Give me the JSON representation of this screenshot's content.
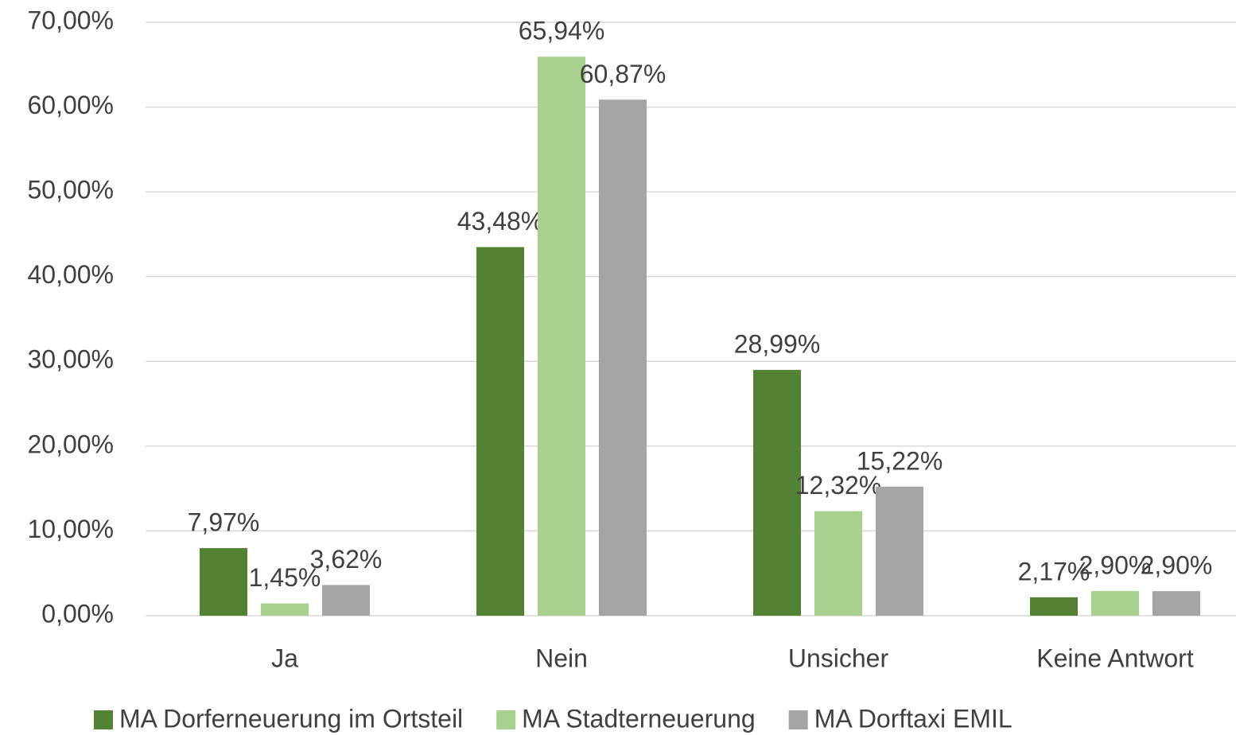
{
  "chart_data": {
    "type": "bar",
    "categories": [
      "Ja",
      "Nein",
      "Unsicher",
      "Keine Antwort"
    ],
    "series": [
      {
        "name": "MA Dorferneuerung im Ortsteil",
        "color": "#548235",
        "values": [
          7.97,
          43.48,
          28.99,
          2.17
        ],
        "value_labels": [
          "7,97%",
          "43,48%",
          "28,99%",
          "2,17%"
        ]
      },
      {
        "name": "MA Stadterneuerung",
        "color": "#a9d18e",
        "values": [
          1.45,
          65.94,
          12.32,
          2.9
        ],
        "value_labels": [
          "1,45%",
          "65,94%",
          "12,32%",
          "2,90%"
        ]
      },
      {
        "name": "MA Dorftaxi EMIL",
        "color": "#a5a5a5",
        "values": [
          3.62,
          60.87,
          15.22,
          2.9
        ],
        "value_labels": [
          "3,62%",
          "60,87%",
          "15,22%",
          "2,90%"
        ]
      }
    ],
    "ylim": [
      0,
      70
    ],
    "yticks": [
      {
        "value": 0,
        "label": "0,00%"
      },
      {
        "value": 10,
        "label": "10,00%"
      },
      {
        "value": 20,
        "label": "20,00%"
      },
      {
        "value": 30,
        "label": "30,00%"
      },
      {
        "value": 40,
        "label": "40,00%"
      },
      {
        "value": 50,
        "label": "50,00%"
      },
      {
        "value": 60,
        "label": "60,00%"
      },
      {
        "value": 70,
        "label": "70,00%"
      }
    ],
    "grid": true,
    "legend": "bottom"
  }
}
